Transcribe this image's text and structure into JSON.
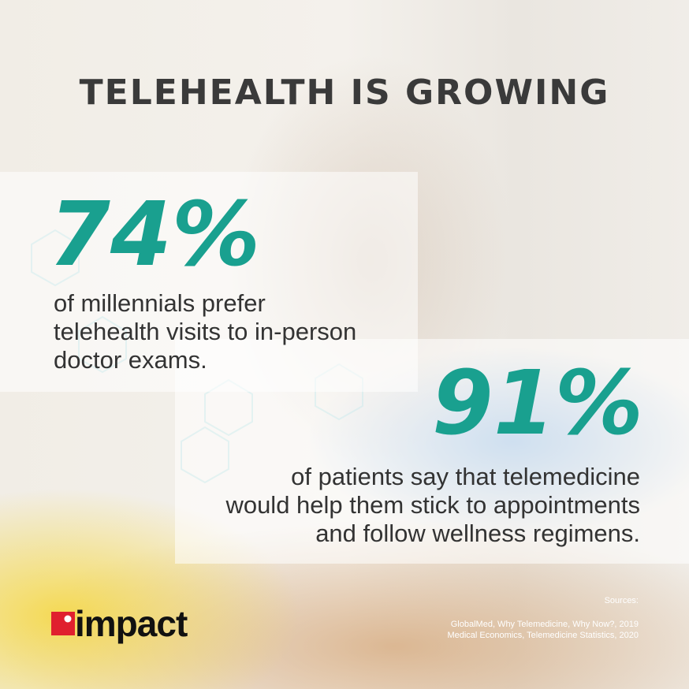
{
  "title": "TELEHEALTH IS GROWING",
  "stats": [
    {
      "value": "74%",
      "lines": [
        "of millennials prefer",
        "telehealth visits to in-person",
        "doctor exams."
      ]
    },
    {
      "value": "91%",
      "lines": [
        "of patients say that telemedicine",
        "would help them stick to appointments",
        "and follow wellness regimens."
      ]
    }
  ],
  "sources": {
    "label": "Sources:",
    "items": [
      "GlobalMed, Why Telemedicine, Why Now?, 2019",
      "Medical Economics, Telemedicine Statistics, 2020"
    ]
  },
  "logo": "impact"
}
